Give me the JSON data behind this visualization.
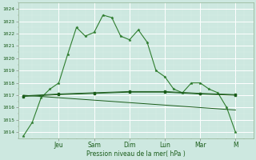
{
  "title": "",
  "xlabel": "Pression niveau de la mer( hPa )",
  "ylabel": "",
  "ylim": [
    1013.5,
    1024.5
  ],
  "yticks": [
    1014,
    1015,
    1016,
    1017,
    1018,
    1019,
    1020,
    1021,
    1022,
    1023,
    1024
  ],
  "bg_color": "#cde8e0",
  "grid_color_major": "#ffffff",
  "grid_color_minor": "#daf0e8",
  "line_color_dark": "#1a5c1a",
  "line_color_med": "#2e7d2e",
  "x_tick_labels": [
    "Jeu",
    "Sam",
    "Dim",
    "Lun",
    "Mar",
    "M"
  ],
  "x_tick_positions": [
    2,
    4,
    6,
    8,
    10,
    12
  ],
  "xlim": [
    -0.3,
    13.0
  ],
  "series1_x": [
    0,
    0.5,
    1,
    1.5,
    2,
    2.5,
    3,
    3.5,
    4,
    4.5,
    5,
    5.5,
    6,
    6.5,
    7,
    7.5,
    8,
    8.5,
    9,
    9.5,
    10,
    10.5,
    11,
    11.5,
    12
  ],
  "series1_y": [
    1013.7,
    1014.8,
    1016.8,
    1017.5,
    1018.0,
    1020.3,
    1022.5,
    1021.8,
    1022.1,
    1023.5,
    1023.3,
    1021.8,
    1021.5,
    1022.3,
    1021.3,
    1019.0,
    1018.5,
    1017.5,
    1017.2,
    1018.0,
    1018.0,
    1017.5,
    1017.2,
    1016.0,
    1014.0
  ],
  "series2_x": [
    0,
    2,
    4,
    6,
    8,
    10,
    12
  ],
  "series2_y": [
    1016.9,
    1017.05,
    1017.15,
    1017.25,
    1017.25,
    1017.1,
    1017.0
  ],
  "series3_x": [
    0,
    12
  ],
  "series3_y": [
    1017.0,
    1015.8
  ],
  "series4_x": [
    0,
    2,
    4,
    6,
    8,
    10,
    12
  ],
  "series4_y": [
    1016.95,
    1017.1,
    1017.2,
    1017.3,
    1017.3,
    1017.15,
    1017.05
  ]
}
